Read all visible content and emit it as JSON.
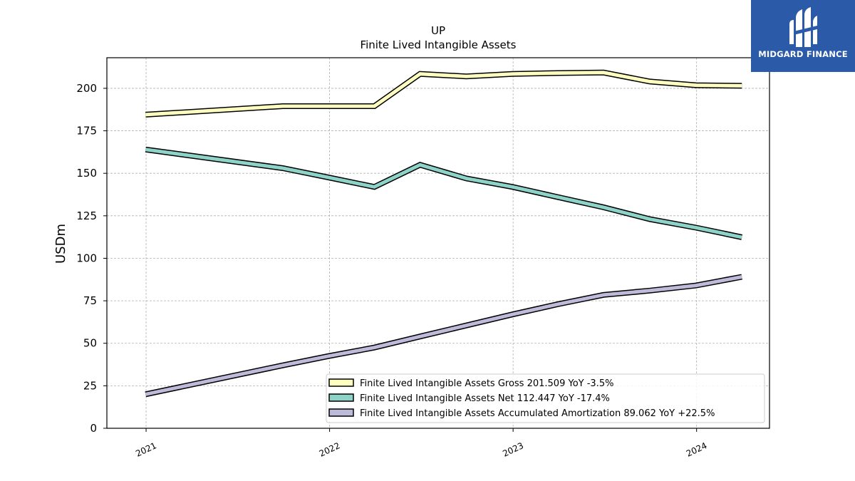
{
  "logo": {
    "text": "MIDGARD FINANCE",
    "bg_color": "#2a5aa8"
  },
  "chart_data": {
    "type": "line",
    "title": "UP",
    "subtitle": "Finite Lived Intangible Assets",
    "xlabel": "",
    "ylabel": "USDm",
    "x_ticks": [
      "2021",
      "2022",
      "2023",
      "2024"
    ],
    "y_ticks": [
      "0",
      "25",
      "50",
      "75",
      "100",
      "125",
      "150",
      "175",
      "200"
    ],
    "ylim": [
      0,
      218
    ],
    "xlim": [
      "2020-10-15",
      "2024-05-25"
    ],
    "grid": true,
    "legend_position": "lower-right",
    "series": [
      {
        "name": "Finite Lived Intangible Assets Gross",
        "legend_label": "Finite Lived Intangible Assets Gross  201.509 YoY -3.5%",
        "color": "#ffffbf",
        "x": [
          "2020-12-31",
          "2021-09-30",
          "2021-12-31",
          "2022-03-31",
          "2022-06-30",
          "2022-09-30",
          "2022-12-31",
          "2023-03-31",
          "2023-06-30",
          "2023-09-30",
          "2023-12-31",
          "2024-03-31"
        ],
        "values": [
          184.5,
          189.5,
          189.5,
          189.5,
          208.5,
          207.0,
          208.5,
          209.0,
          209.3,
          204.0,
          201.8,
          201.5
        ]
      },
      {
        "name": "Finite Lived Intangible Assets Net",
        "legend_label": "Finite Lived Intangible Assets Net  112.447 YoY -17.4%",
        "color": "#8dd3c7",
        "x": [
          "2020-12-31",
          "2021-09-30",
          "2021-12-31",
          "2022-03-31",
          "2022-06-30",
          "2022-09-30",
          "2022-12-31",
          "2023-03-31",
          "2023-06-30",
          "2023-09-30",
          "2023-12-31",
          "2024-03-31"
        ],
        "values": [
          164.0,
          153.0,
          147.5,
          142.0,
          155.0,
          147.0,
          142.0,
          136.0,
          130.0,
          123.0,
          118.0,
          112.4
        ]
      },
      {
        "name": "Finite Lived Intangible Assets Accumulated Amortization",
        "legend_label": "Finite Lived Intangible Assets Accumulated Amortization  89.062 YoY +22.5%",
        "color": "#bebada",
        "x": [
          "2020-12-31",
          "2021-09-30",
          "2021-12-31",
          "2022-03-31",
          "2022-06-30",
          "2022-09-30",
          "2022-12-31",
          "2023-03-31",
          "2023-06-30",
          "2023-09-30",
          "2023-12-31",
          "2024-03-31"
        ],
        "values": [
          20.0,
          37.0,
          42.5,
          47.5,
          54.0,
          60.5,
          67.0,
          73.0,
          78.5,
          81.0,
          84.0,
          89.1
        ]
      }
    ]
  }
}
